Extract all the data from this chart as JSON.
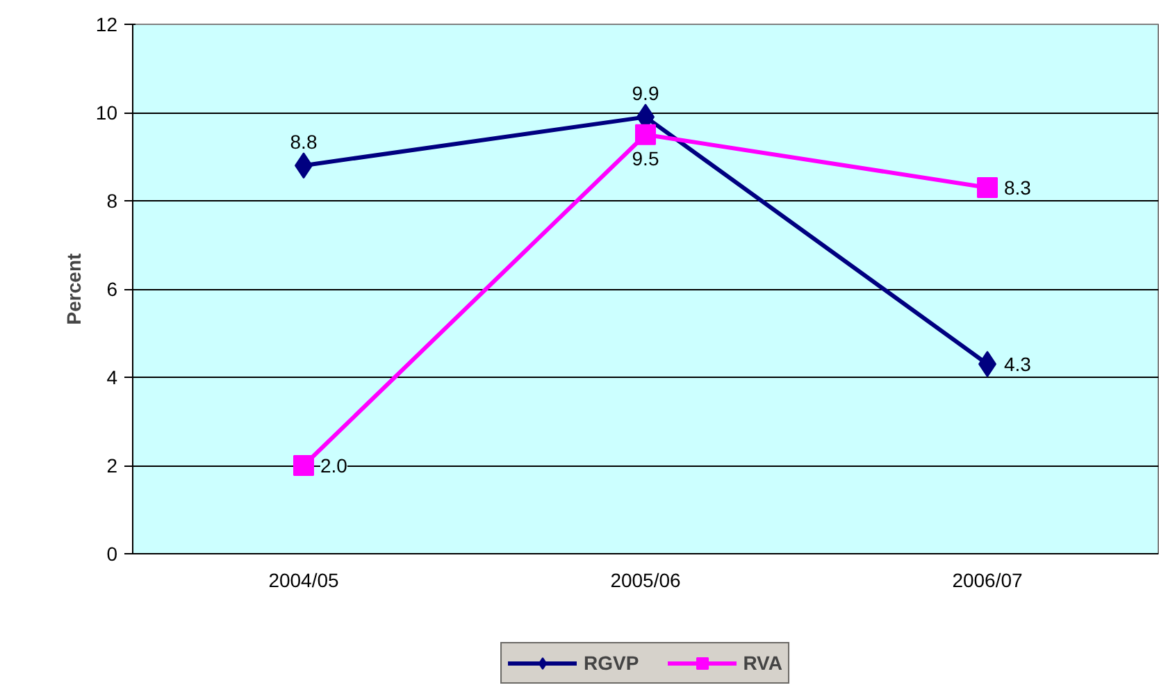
{
  "chart_data": {
    "type": "line",
    "ylabel": "Percent",
    "categories": [
      "2004/05",
      "2005/06",
      "2006/07"
    ],
    "series": [
      {
        "name": "RGVP",
        "color": "#000080",
        "values": [
          8.8,
          9.9,
          4.3
        ],
        "value_labels": [
          "8.8",
          "9.9",
          "4.3"
        ],
        "marker": "diamond"
      },
      {
        "name": "RVA",
        "color": "#ff00ff",
        "values": [
          2.0,
          9.5,
          8.3
        ],
        "value_labels": [
          "2.0",
          "9.5",
          "8.3"
        ],
        "marker": "square"
      }
    ],
    "ylim": [
      0,
      12
    ],
    "yticks": [
      0,
      2,
      4,
      6,
      8,
      10,
      12
    ],
    "grid": "y",
    "legend": "bottom",
    "data_labels": true,
    "line_style": "solid"
  }
}
